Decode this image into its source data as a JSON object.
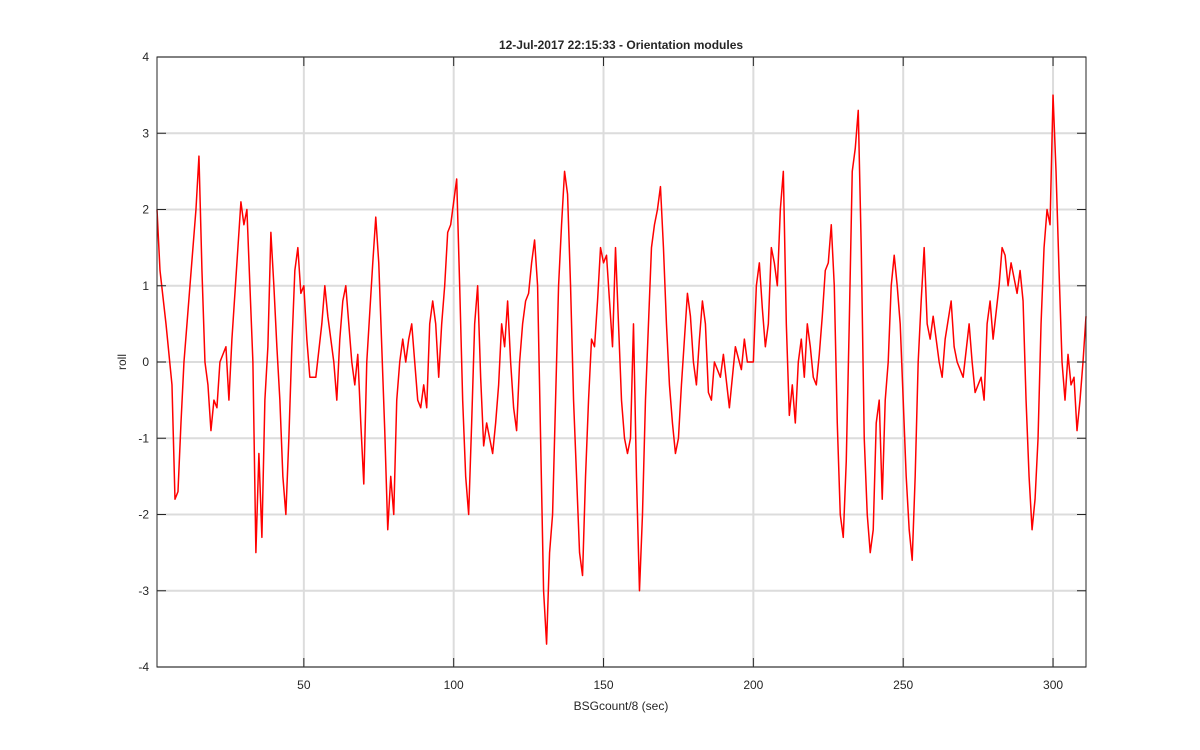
{
  "chart_data": {
    "type": "line",
    "title": "12-Jul-2017 22:15:33 - Orientation modules",
    "x_label": "BSGcount/8 (sec)",
    "y_label": "roll",
    "xlim": [
      1,
      311
    ],
    "ylim": [
      -4,
      4
    ],
    "xticks": [
      50,
      100,
      150,
      200,
      250,
      300
    ],
    "yticks": [
      -4,
      -3,
      -2,
      -1,
      0,
      1,
      2,
      3,
      4
    ],
    "grid": true,
    "x": [
      1,
      2,
      4,
      6,
      7,
      8,
      9,
      10,
      11,
      12,
      14,
      15,
      16,
      17,
      18,
      19,
      20,
      21,
      22,
      24,
      25,
      26,
      28,
      29,
      30,
      31,
      32,
      33,
      34,
      35,
      36,
      37,
      38,
      39,
      40,
      41,
      42,
      43,
      44,
      45,
      46,
      47,
      48,
      49,
      50,
      51,
      52,
      54,
      56,
      57,
      58,
      60,
      61,
      62,
      63,
      64,
      65,
      66,
      67,
      68,
      69,
      70,
      71,
      73,
      74,
      75,
      76,
      77,
      78,
      79,
      80,
      81,
      82,
      83,
      84,
      85,
      86,
      87,
      88,
      89,
      90,
      91,
      92,
      93,
      94,
      95,
      96,
      97,
      98,
      99,
      100,
      101,
      102,
      103,
      104,
      105,
      106,
      107,
      108,
      109,
      110,
      111,
      112,
      113,
      114,
      115,
      116,
      117,
      118,
      119,
      120,
      121,
      122,
      123,
      124,
      125,
      126,
      127,
      128,
      129,
      130,
      131,
      132,
      133,
      134,
      135,
      136,
      137,
      138,
      139,
      140,
      141,
      142,
      143,
      144,
      145,
      146,
      147,
      148,
      149,
      150,
      151,
      152,
      153,
      154,
      155,
      156,
      157,
      158,
      159,
      160,
      161,
      162,
      163,
      164,
      165,
      166,
      167,
      168,
      169,
      170,
      171,
      172,
      173,
      174,
      175,
      176,
      177,
      178,
      179,
      180,
      181,
      182,
      183,
      184,
      185,
      186,
      187,
      189,
      190,
      192,
      194,
      196,
      197,
      198,
      200,
      201,
      202,
      203,
      204,
      205,
      206,
      207,
      208,
      209,
      210,
      211,
      212,
      213,
      214,
      215,
      216,
      217,
      218,
      219,
      220,
      221,
      222,
      223,
      224,
      225,
      226,
      227,
      228,
      229,
      230,
      231,
      232,
      233,
      234,
      235,
      236,
      237,
      238,
      239,
      240,
      241,
      242,
      243,
      244,
      245,
      246,
      247,
      248,
      249,
      250,
      251,
      252,
      253,
      254,
      255,
      256,
      257,
      258,
      259,
      260,
      262,
      263,
      264,
      266,
      267,
      268,
      270,
      272,
      273,
      274,
      276,
      277,
      278,
      279,
      280,
      282,
      283,
      284,
      285,
      286,
      287,
      288,
      289,
      290,
      291,
      292,
      293,
      294,
      295,
      296,
      297,
      298,
      299,
      300,
      301,
      302,
      303,
      304,
      305,
      306,
      307,
      308,
      309,
      310,
      311
    ],
    "series": [
      {
        "name": "roll",
        "color": "#ff0000",
        "values": [
          2.0,
          1.2,
          0.5,
          -0.3,
          -1.8,
          -1.7,
          -0.8,
          0.0,
          0.5,
          1.0,
          2.0,
          2.7,
          1.2,
          0.0,
          -0.3,
          -0.9,
          -0.5,
          -0.6,
          0.0,
          0.2,
          -0.5,
          0.3,
          1.5,
          2.1,
          1.8,
          2.0,
          1.0,
          0.0,
          -2.5,
          -1.2,
          -2.3,
          -0.5,
          0.2,
          1.7,
          1.0,
          0.2,
          -0.5,
          -1.5,
          -2.0,
          -1.0,
          0.2,
          1.2,
          1.5,
          0.9,
          1.0,
          0.3,
          -0.2,
          -0.2,
          0.5,
          1.0,
          0.6,
          0.0,
          -0.5,
          0.3,
          0.8,
          1.0,
          0.5,
          0.0,
          -0.3,
          0.1,
          -0.8,
          -1.6,
          0.0,
          1.3,
          1.9,
          1.3,
          0.2,
          -0.9,
          -2.2,
          -1.5,
          -2.0,
          -0.5,
          0.0,
          0.3,
          0.0,
          0.3,
          0.5,
          0.0,
          -0.5,
          -0.6,
          -0.3,
          -0.6,
          0.5,
          0.8,
          0.5,
          -0.2,
          0.5,
          1.0,
          1.7,
          1.8,
          2.1,
          2.4,
          1.0,
          -0.5,
          -1.5,
          -2.0,
          -0.8,
          0.5,
          1.0,
          -0.2,
          -1.1,
          -0.8,
          -1.0,
          -1.2,
          -0.8,
          -0.3,
          0.5,
          0.2,
          0.8,
          0.0,
          -0.6,
          -0.9,
          0.0,
          0.5,
          0.8,
          0.9,
          1.3,
          1.6,
          1.0,
          -1.0,
          -3.0,
          -3.7,
          -2.5,
          -2.0,
          -0.5,
          1.0,
          1.8,
          2.5,
          2.2,
          1.0,
          -0.5,
          -1.5,
          -2.5,
          -2.8,
          -1.5,
          -0.5,
          0.3,
          0.2,
          0.8,
          1.5,
          1.3,
          1.4,
          0.8,
          0.2,
          1.5,
          0.5,
          -0.5,
          -1.0,
          -1.2,
          -1.0,
          0.5,
          -1.5,
          -3.0,
          -2.0,
          -0.5,
          0.5,
          1.5,
          1.8,
          2.0,
          2.3,
          1.5,
          0.5,
          -0.3,
          -0.8,
          -1.2,
          -1.0,
          -0.3,
          0.3,
          0.9,
          0.6,
          0.0,
          -0.3,
          0.3,
          0.8,
          0.5,
          -0.4,
          -0.5,
          0.0,
          -0.2,
          0.1,
          -0.6,
          0.2,
          -0.1,
          0.3,
          0.0,
          0.0,
          1.0,
          1.3,
          0.7,
          0.2,
          0.5,
          1.5,
          1.3,
          1.0,
          2.0,
          2.5,
          0.5,
          -0.7,
          -0.3,
          -0.8,
          0.0,
          0.3,
          -0.2,
          0.5,
          0.2,
          -0.2,
          -0.3,
          0.1,
          0.6,
          1.2,
          1.3,
          1.8,
          1.0,
          -0.8,
          -2.0,
          -2.3,
          -1.3,
          0.5,
          2.5,
          2.8,
          3.3,
          1.5,
          -1.0,
          -2.0,
          -2.5,
          -2.2,
          -0.8,
          -0.5,
          -1.8,
          -0.5,
          0.0,
          1.0,
          1.4,
          1.0,
          0.5,
          -0.5,
          -1.5,
          -2.2,
          -2.6,
          -1.5,
          0.0,
          0.8,
          1.5,
          0.5,
          0.3,
          0.6,
          0.0,
          -0.2,
          0.3,
          0.8,
          0.2,
          0.0,
          -0.2,
          0.5,
          0.0,
          -0.4,
          -0.2,
          -0.5,
          0.5,
          0.8,
          0.3,
          1.0,
          1.5,
          1.4,
          1.0,
          1.3,
          1.1,
          0.9,
          1.2,
          0.8,
          -0.5,
          -1.5,
          -2.2,
          -1.8,
          -1.0,
          0.5,
          1.5,
          2.0,
          1.8,
          3.5,
          2.5,
          1.2,
          0.0,
          -0.5,
          0.1,
          -0.3,
          -0.2,
          -0.9,
          -0.5,
          0.0,
          0.6
        ]
      }
    ]
  }
}
